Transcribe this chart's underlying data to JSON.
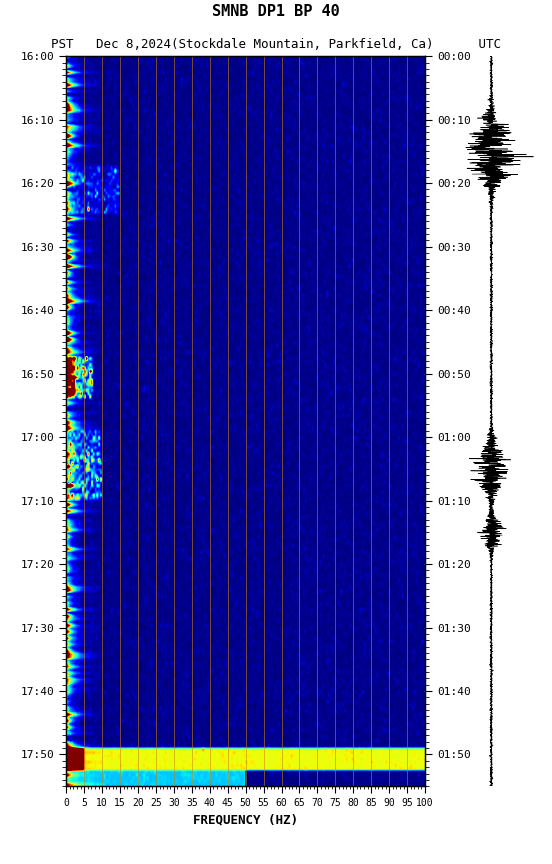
{
  "title_line1": "SMNB DP1 BP 40",
  "title_line2": "PST   Dec 8,2024(Stockdale Mountain, Parkfield, Ca)      UTC",
  "xlabel": "FREQUENCY (HZ)",
  "freq_min": 0,
  "freq_max": 100,
  "ytick_interval_min": 10,
  "freq_grid_lines": [
    5,
    10,
    15,
    20,
    25,
    30,
    35,
    40,
    45,
    50,
    55,
    60,
    65,
    70,
    75,
    80,
    85,
    90,
    95,
    100
  ],
  "xtick_labels": [
    "0",
    "5",
    "10",
    "15",
    "20",
    "25",
    "30",
    "35",
    "40",
    "45",
    "50",
    "55",
    "60",
    "65",
    "70",
    "75",
    "80",
    "85",
    "90",
    "95",
    "100"
  ],
  "colormap": "jet",
  "background_color": "#ffffff"
}
